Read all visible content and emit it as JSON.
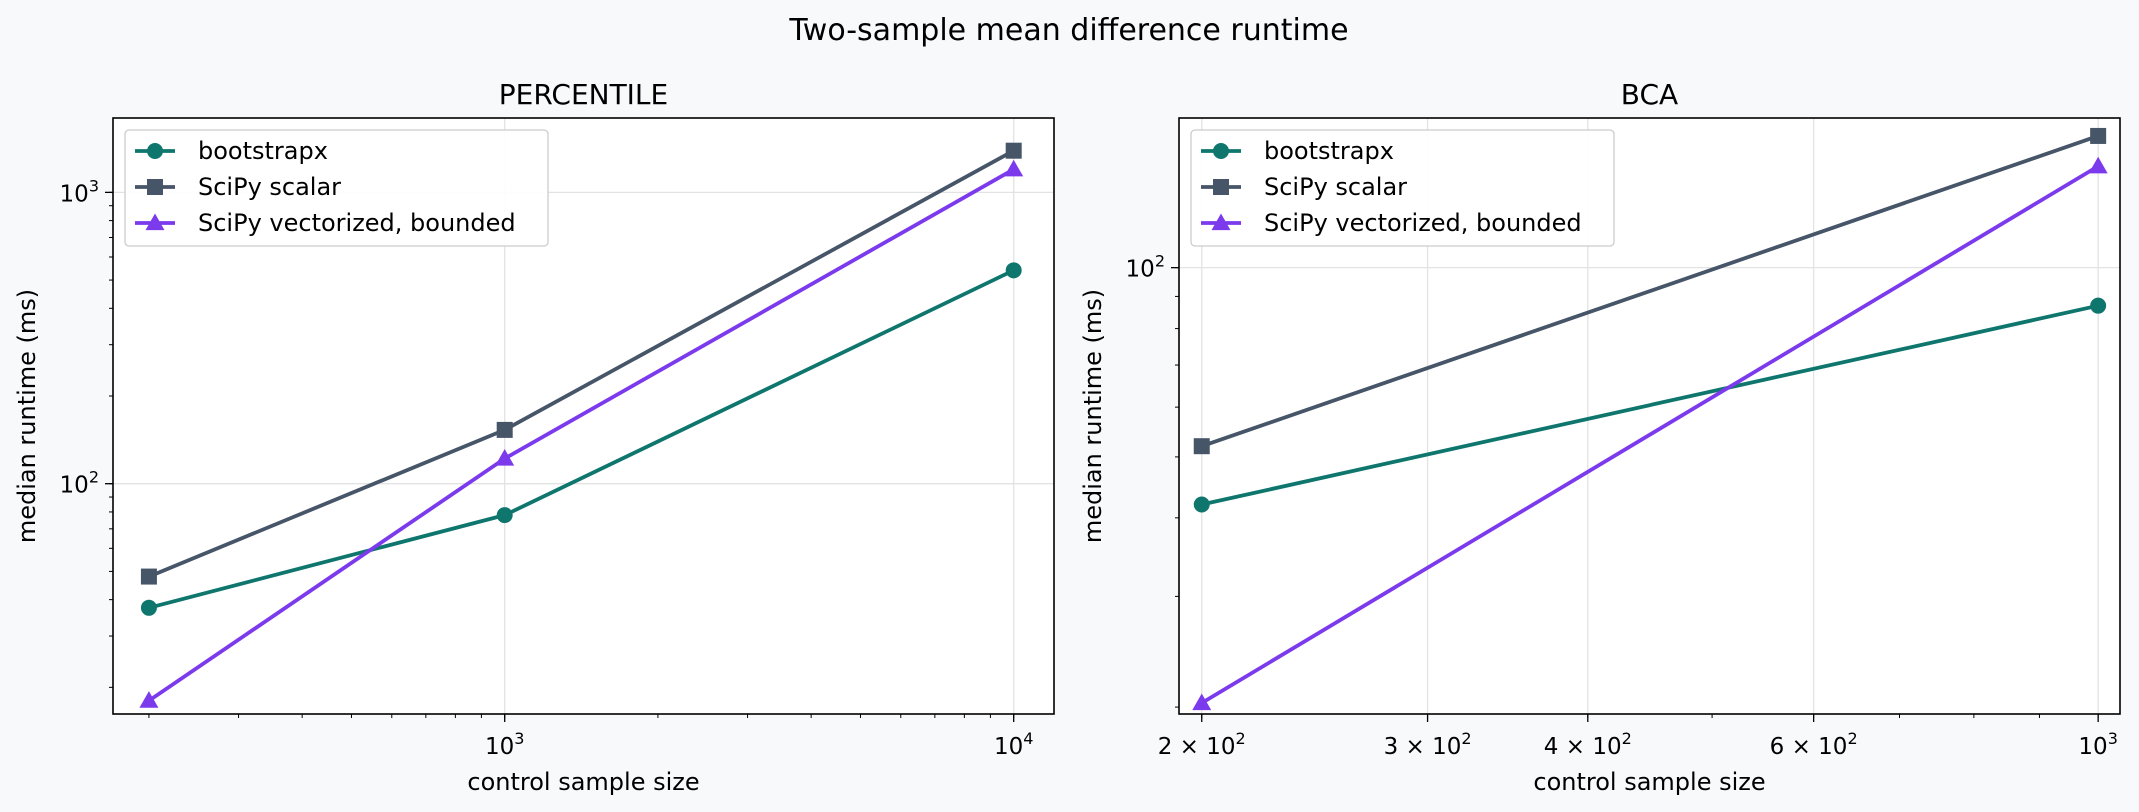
{
  "figure": {
    "title": "Two-sample mean difference runtime"
  },
  "chart_data": [
    {
      "type": "line",
      "title": "PERCENTILE",
      "xlabel": "control sample size",
      "ylabel": "median runtime (ms)",
      "xscale": "log",
      "yscale": "log",
      "xlim": [
        170,
        12000
      ],
      "ylim": [
        16.2,
        1800
      ],
      "x": [
        200,
        1000,
        10000
      ],
      "xticks": [
        {
          "value": 1000,
          "base": "10",
          "exp": "3"
        },
        {
          "value": 10000,
          "base": "10",
          "exp": "4"
        }
      ],
      "yticks": [
        {
          "value": 100,
          "base": "10",
          "exp": "2"
        },
        {
          "value": 1000,
          "base": "10",
          "exp": "3"
        }
      ],
      "grid": true,
      "legend_position": "top-left",
      "series": [
        {
          "name": "bootstrapx",
          "values": [
            37.5,
            78,
            540
          ],
          "color": "#0f766e",
          "marker": "circle"
        },
        {
          "name": "SciPy scalar",
          "values": [
            48,
            153,
            1390
          ],
          "color": "#475569",
          "marker": "square"
        },
        {
          "name": "SciPy vectorized, bounded",
          "values": [
            18,
            122,
            1200
          ],
          "color": "#7c3aed",
          "marker": "triangle"
        }
      ]
    },
    {
      "type": "line",
      "title": "BCA",
      "xlabel": "control sample size",
      "ylabel": "median runtime (ms)",
      "xscale": "log",
      "yscale": "log",
      "xlim": [
        192,
        1040
      ],
      "ylim": [
        19.5,
        173
      ],
      "x": [
        200,
        1000
      ],
      "xticks": [
        {
          "value": 200,
          "base": "2 × 10",
          "exp": "2"
        },
        {
          "value": 300,
          "base": "3 × 10",
          "exp": "2"
        },
        {
          "value": 400,
          "base": "4 × 10",
          "exp": "2"
        },
        {
          "value": 600,
          "base": "6 × 10",
          "exp": "2"
        },
        {
          "value": 1000,
          "base": "10",
          "exp": "3"
        }
      ],
      "yticks": [
        {
          "value": 100,
          "base": "10",
          "exp": "2"
        }
      ],
      "grid": true,
      "legend_position": "top-left",
      "series": [
        {
          "name": "bootstrapx",
          "values": [
            42,
            87
          ],
          "color": "#0f766e",
          "marker": "circle"
        },
        {
          "name": "SciPy scalar",
          "values": [
            52,
            162
          ],
          "color": "#475569",
          "marker": "square"
        },
        {
          "name": "SciPy vectorized, bounded",
          "values": [
            20.3,
            145
          ],
          "color": "#7c3aed",
          "marker": "triangle"
        }
      ]
    }
  ]
}
